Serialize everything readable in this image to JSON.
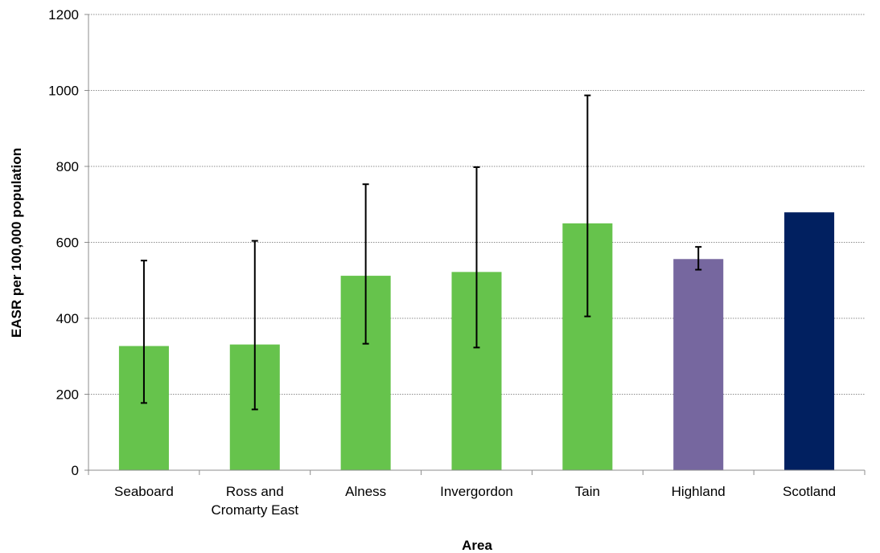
{
  "chart_data": {
    "type": "bar",
    "xlabel": "Area",
    "ylabel": "EASR per 100,000 population",
    "ylim": [
      0,
      1200
    ],
    "yticks": [
      0,
      200,
      400,
      600,
      800,
      1000,
      1200
    ],
    "grid": "horizontal-dotted",
    "categories": [
      [
        "Seaboard"
      ],
      [
        "Ross and",
        "Cromarty East"
      ],
      [
        "Alness"
      ],
      [
        "Invergordon"
      ],
      [
        "Tain"
      ],
      [
        "Highland"
      ],
      [
        "Scotland"
      ]
    ],
    "values": [
      327,
      331,
      512,
      522,
      650,
      556,
      679
    ],
    "error_low": [
      177,
      160,
      333,
      323,
      405,
      528,
      null
    ],
    "error_high": [
      552,
      604,
      753,
      798,
      987,
      588,
      null
    ],
    "colors": [
      "#66c34c",
      "#66c34c",
      "#66c34c",
      "#66c34c",
      "#66c34c",
      "#76679f",
      "#012060"
    ]
  }
}
